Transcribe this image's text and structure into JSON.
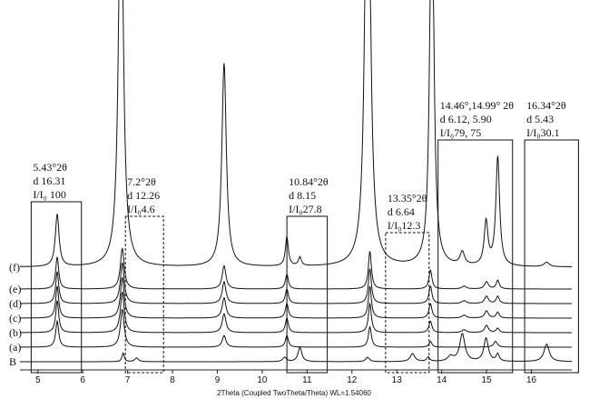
{
  "chart_data": {
    "type": "line",
    "title": "",
    "xlabel": "2Theta (Coupled TwoTheta/Theta) WL=1.54060",
    "ylabel": "",
    "xlim": [
      4.6,
      16.9
    ],
    "x_ticks": [
      "5",
      "6",
      "7",
      "8",
      "9",
      "10",
      "11",
      "12",
      "13",
      "14",
      "15",
      "16"
    ],
    "series": [
      {
        "name": "B",
        "label": "B",
        "baseline": 0,
        "peaks": [
          [
            6.9,
            0.6,
            0.03
          ],
          [
            7.2,
            0.25,
            0.05
          ],
          [
            10.5,
            0.3,
            0.05
          ],
          [
            10.84,
            1.0,
            0.05
          ],
          [
            12.35,
            0.3,
            0.05
          ],
          [
            13.35,
            0.55,
            0.06
          ],
          [
            13.7,
            0.3,
            0.04
          ],
          [
            14.2,
            0.35,
            0.07
          ],
          [
            14.46,
            1.9,
            0.07
          ],
          [
            14.99,
            1.6,
            0.06
          ],
          [
            15.25,
            0.5,
            0.04
          ],
          [
            16.34,
            1.2,
            0.07
          ]
        ]
      },
      {
        "name": "(a)",
        "label": "(a)",
        "baseline": 1,
        "peaks": [
          [
            5.43,
            1.8,
            0.04
          ],
          [
            6.88,
            2.6,
            0.05
          ],
          [
            9.15,
            0.8,
            0.05
          ],
          [
            10.55,
            0.8,
            0.04
          ],
          [
            12.4,
            1.4,
            0.04
          ],
          [
            13.75,
            0.4,
            0.04
          ],
          [
            15.2,
            0.4,
            0.05
          ]
        ]
      },
      {
        "name": "(b)",
        "label": "(b)",
        "baseline": 2,
        "peaks": [
          [
            5.43,
            2.2,
            0.04
          ],
          [
            6.88,
            2.8,
            0.05
          ],
          [
            9.15,
            1.3,
            0.05
          ],
          [
            10.55,
            1.0,
            0.04
          ],
          [
            12.4,
            2.0,
            0.04
          ],
          [
            13.75,
            0.8,
            0.04
          ],
          [
            14.5,
            0.2,
            0.06
          ],
          [
            15.0,
            0.5,
            0.05
          ],
          [
            15.25,
            0.3,
            0.04
          ]
        ]
      },
      {
        "name": "(c)",
        "label": "(c)",
        "baseline": 3,
        "peaks": [
          [
            5.43,
            2.2,
            0.04
          ],
          [
            6.88,
            2.8,
            0.05
          ],
          [
            9.15,
            1.4,
            0.05
          ],
          [
            10.55,
            1.0,
            0.04
          ],
          [
            12.4,
            2.2,
            0.04
          ],
          [
            13.75,
            1.0,
            0.04
          ],
          [
            14.5,
            0.2,
            0.06
          ],
          [
            15.0,
            0.5,
            0.05
          ],
          [
            15.25,
            0.4,
            0.04
          ]
        ]
      },
      {
        "name": "(d)",
        "label": "(d)",
        "baseline": 4,
        "peaks": [
          [
            5.43,
            2.2,
            0.04
          ],
          [
            6.88,
            2.8,
            0.05
          ],
          [
            9.15,
            1.5,
            0.05
          ],
          [
            10.55,
            1.0,
            0.04
          ],
          [
            12.4,
            2.4,
            0.04
          ],
          [
            13.75,
            1.2,
            0.04
          ],
          [
            14.5,
            0.2,
            0.06
          ],
          [
            15.0,
            0.5,
            0.05
          ],
          [
            15.25,
            0.5,
            0.04
          ]
        ]
      },
      {
        "name": "(e)",
        "label": "(e)",
        "baseline": 5,
        "peaks": [
          [
            5.43,
            2.2,
            0.04
          ],
          [
            6.88,
            2.8,
            0.05
          ],
          [
            9.15,
            1.6,
            0.05
          ],
          [
            10.55,
            1.0,
            0.04
          ],
          [
            12.4,
            2.6,
            0.04
          ],
          [
            13.75,
            1.3,
            0.04
          ],
          [
            14.5,
            0.2,
            0.06
          ],
          [
            15.0,
            0.5,
            0.05
          ],
          [
            15.25,
            0.6,
            0.04
          ]
        ]
      },
      {
        "name": "(f)",
        "label": "(f)",
        "baseline": 6.5,
        "peaks": [
          [
            5.43,
            3.6,
            0.05
          ],
          [
            6.85,
            30,
            0.06
          ],
          [
            9.15,
            14,
            0.06
          ],
          [
            10.55,
            2.0,
            0.04
          ],
          [
            10.84,
            0.6,
            0.04
          ],
          [
            12.35,
            40,
            0.06
          ],
          [
            13.78,
            30,
            0.05
          ],
          [
            14.46,
            0.9,
            0.06
          ],
          [
            14.99,
            3.0,
            0.05
          ],
          [
            15.25,
            7.5,
            0.05
          ],
          [
            16.34,
            0.3,
            0.07
          ]
        ]
      }
    ],
    "annotations": [
      {
        "lines": [
          "5.43°2θ",
          "d 16.31",
          "I/I₀ 100"
        ],
        "box": [
          4.85,
          5.97
        ],
        "style": "solid"
      },
      {
        "lines": [
          "7.2°2θ",
          "d 12.26",
          "I/I₀4.6"
        ],
        "box": [
          6.95,
          7.8
        ],
        "style": "dashed"
      },
      {
        "lines": [
          "10.84°2θ",
          "d 8.15",
          "I/I₀27.8"
        ],
        "box": [
          10.55,
          11.45
        ],
        "style": "solid"
      },
      {
        "lines": [
          "13.35°2θ",
          "d 6.64",
          "I/I₀12.3"
        ],
        "box": [
          12.75,
          13.72
        ],
        "style": "dashed"
      },
      {
        "lines": [
          "14.46°,14.99° 2θ",
          "d 6.12, 5.90",
          "I/I₀79, 75"
        ],
        "box": [
          13.92,
          15.58
        ],
        "style": "solid"
      },
      {
        "lines": [
          "16.34°2θ",
          "d 5.43",
          "I/I₀30.1"
        ],
        "box": [
          15.85,
          17.05
        ],
        "style": "solid"
      }
    ]
  }
}
